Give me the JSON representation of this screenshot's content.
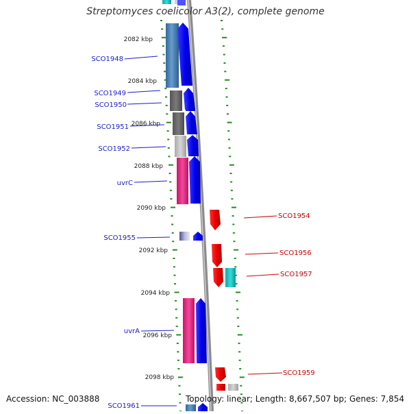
{
  "header": {
    "title": "Streptomyces coelicolor A3(2), complete genome"
  },
  "footer": {
    "accession": "Accession: NC_003888",
    "summary": "Topology: linear; Length: 8,667,507 bp; Genes: 7,854"
  },
  "scale": {
    "unit": "kbp",
    "ticks": [
      "2082 kbp",
      "2084 kbp",
      "2086 kbp",
      "2088 kbp",
      "2090 kbp",
      "2092 kbp",
      "2094 kbp",
      "2096 kbp",
      "2098 kbp"
    ]
  },
  "colors": {
    "left_label": "#1a1acc",
    "right_label": "#cc0000",
    "forward_arrow": "#0000ee",
    "reverse_arrow": "#ee0000",
    "tick": "#228b22",
    "backbone": "#8c8c8c"
  },
  "genes_left": [
    {
      "label": "SCO1948",
      "strand": "forward",
      "tone": "#4f86b8"
    },
    {
      "label": "SCO1949",
      "strand": "forward",
      "tone": "#6f6f6f"
    },
    {
      "label": "SCO1950",
      "strand": "forward",
      "tone": "#6f6f6f"
    },
    {
      "label": "SCO1951",
      "strand": "forward",
      "tone": "#6f6f6f"
    },
    {
      "label": "SCO1952",
      "strand": "forward",
      "tone": "#c4c4c4"
    },
    {
      "label": "uvrC",
      "strand": "forward",
      "tone": "#ee2a8c"
    },
    {
      "label": "SCO1955",
      "strand": "forward",
      "tone": "#7878b0"
    },
    {
      "label": "uvrA",
      "strand": "forward",
      "tone": "#ee2a8c"
    },
    {
      "label": "SCO1961",
      "strand": "forward",
      "tone": "#4f86b8"
    }
  ],
  "genes_right": [
    {
      "label": "SCO1954",
      "strand": "reverse",
      "tone": ""
    },
    {
      "label": "SCO1956",
      "strand": "reverse",
      "tone": ""
    },
    {
      "label": "SCO1957",
      "strand": "reverse",
      "tone": "#22cccc"
    },
    {
      "label": "SCO1959",
      "strand": "reverse",
      "tone": "#c4c4c4"
    }
  ]
}
